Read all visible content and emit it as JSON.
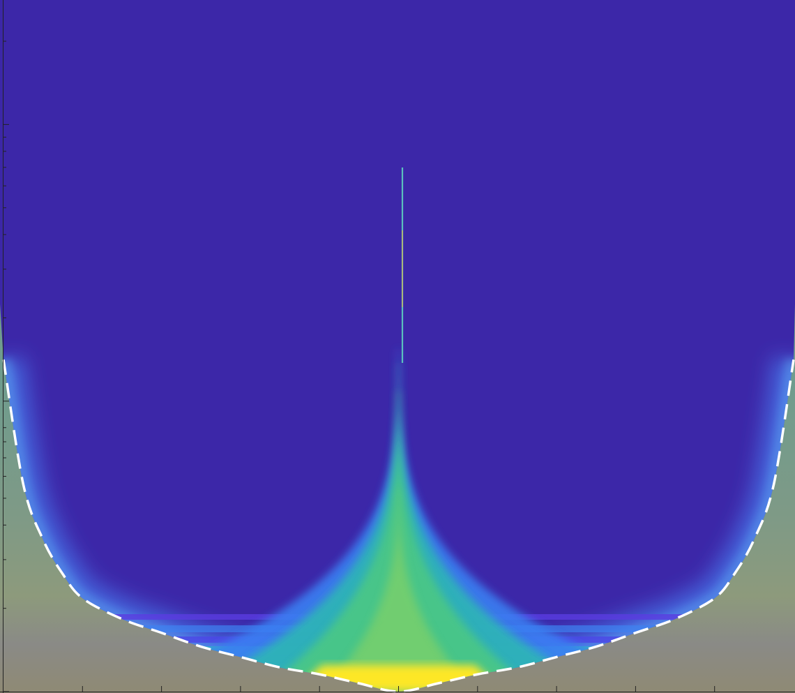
{
  "chart_data": {
    "type": "heatmap",
    "title": "",
    "xlabel": "",
    "ylabel": "",
    "xlim": [
      -1,
      1
    ],
    "ylim": [
      0,
      1
    ],
    "grid": false,
    "legend": "none",
    "colormap": "parula",
    "x_ticks": [
      -0.8,
      -0.6,
      -0.4,
      -0.2,
      0,
      0.2,
      0.4,
      0.6,
      0.8
    ],
    "y_scale": "log",
    "cone_of_influence": {
      "style": "white-dashed",
      "x": [
        -1.0,
        -0.95,
        -0.9,
        -0.85,
        -0.8,
        -0.7,
        -0.6,
        -0.5,
        -0.4,
        -0.3,
        -0.2,
        -0.1,
        0.0,
        0.1,
        0.2,
        0.3,
        0.4,
        0.5,
        0.6,
        0.7,
        0.8,
        0.85,
        0.9,
        0.95,
        1.0
      ],
      "y": [
        0.48,
        0.3,
        0.22,
        0.17,
        0.135,
        0.105,
        0.085,
        0.065,
        0.05,
        0.035,
        0.025,
        0.012,
        0.0,
        0.012,
        0.025,
        0.035,
        0.05,
        0.065,
        0.085,
        0.105,
        0.135,
        0.17,
        0.22,
        0.3,
        0.48
      ]
    },
    "colors": {
      "background": "#3c27a8",
      "outside_coi": "#8c8c78",
      "peak": "#f9e72a",
      "mid": "#3fc888",
      "edge": "#3a7ef0",
      "dash": "#ffffff"
    }
  }
}
